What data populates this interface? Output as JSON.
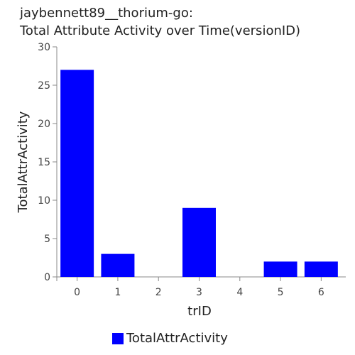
{
  "chart_data": {
    "type": "bar",
    "title_lines": [
      "jaybennett89__thorium-go:",
      "Total Attribute Activity over Time(versionID)"
    ],
    "xlabel": "trID",
    "ylabel": "TotalAttrActivity",
    "categories": [
      "0",
      "1",
      "2",
      "3",
      "4",
      "5",
      "6"
    ],
    "series": [
      {
        "name": "TotalAttrActivity",
        "values": [
          27,
          3,
          0,
          9,
          0,
          2,
          2
        ],
        "color": "#0000ff"
      }
    ],
    "ylim": [
      0,
      30
    ],
    "yticks": [
      0,
      5,
      10,
      15,
      20,
      25,
      30
    ],
    "grid": false,
    "legend_position": "bottom-center"
  }
}
